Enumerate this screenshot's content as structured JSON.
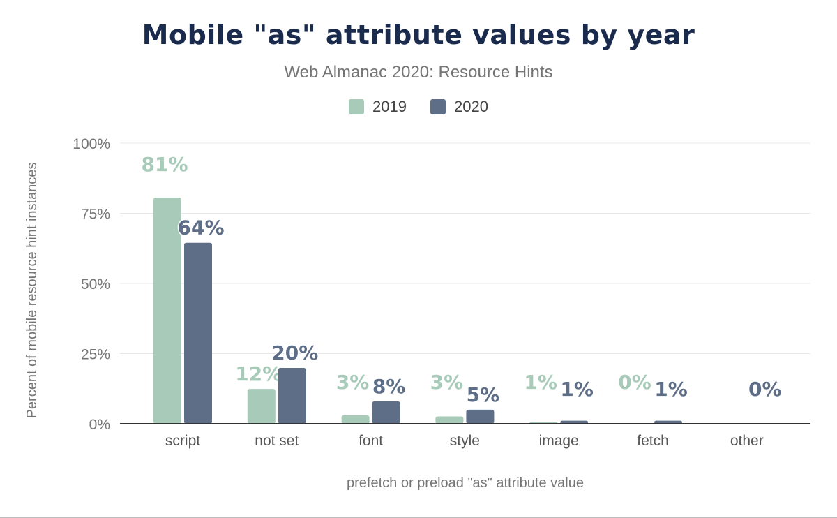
{
  "chart_data": {
    "type": "bar",
    "title": "Mobile \"as\" attribute values by year",
    "subtitle": "Web Almanac 2020: Resource Hints",
    "xlabel": "prefetch or preload \"as\" attribute value",
    "ylabel": "Percent of mobile resource hint instances",
    "ylim": [
      0,
      100
    ],
    "yticks": [
      "0%",
      "25%",
      "50%",
      "75%",
      "100%"
    ],
    "ytick_values": [
      0,
      25,
      50,
      75,
      100
    ],
    "grid": true,
    "legend_placement": "top-center",
    "categories": [
      "script",
      "not set",
      "font",
      "style",
      "image",
      "fetch",
      "other"
    ],
    "series": [
      {
        "name": "2019",
        "color": "#a8cab9",
        "values": [
          80.6,
          12.4,
          3.0,
          2.6,
          0.7,
          0.0,
          null
        ],
        "labels": [
          "81%",
          "12%",
          "3%",
          "3%",
          "1%",
          "0%",
          ""
        ]
      },
      {
        "name": "2020",
        "color": "#5f6e87",
        "values": [
          64.5,
          19.9,
          8.0,
          5.0,
          1.1,
          1.1,
          0.0
        ],
        "labels": [
          "64%",
          "20%",
          "8%",
          "5%",
          "1%",
          "1%",
          "0%"
        ]
      }
    ]
  }
}
